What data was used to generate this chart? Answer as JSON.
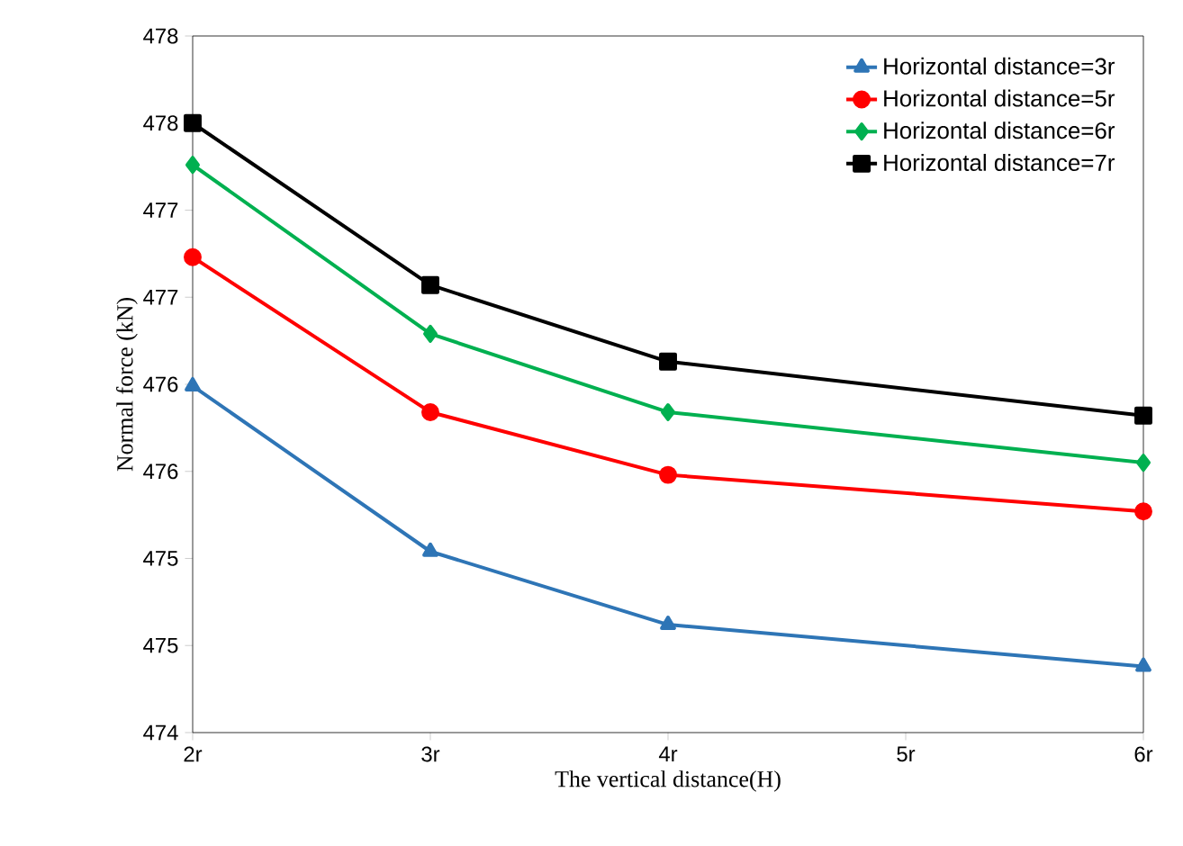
{
  "chart_data": {
    "type": "line",
    "xlabel": "The vertical distance(H)",
    "ylabel": "Normal force (kN)",
    "x": [
      2,
      3,
      4,
      6
    ],
    "xlim": [
      2,
      6
    ],
    "xticks": [
      {
        "value": 2,
        "label": "2r"
      },
      {
        "value": 3,
        "label": "3r"
      },
      {
        "value": 4,
        "label": "4r"
      },
      {
        "value": 5,
        "label": "5r"
      },
      {
        "value": 6,
        "label": "6r"
      }
    ],
    "ylim": [
      474,
      478
    ],
    "yticks": [
      474,
      {
        "value": 474.5,
        "label": "475"
      },
      475,
      {
        "value": 475.5,
        "label": "476"
      },
      476,
      {
        "value": 476.5,
        "label": "477"
      },
      477,
      {
        "value": 477.5,
        "label": "478"
      },
      478
    ],
    "series": [
      {
        "name": "Horizontal distance=3r",
        "color": "#2e75b6",
        "marker": "triangle",
        "values": [
          475.99,
          475.04,
          474.62,
          474.38
        ]
      },
      {
        "name": "Horizontal distance=5r",
        "color": "#ff0000",
        "marker": "circle",
        "values": [
          476.73,
          475.84,
          475.48,
          475.27
        ]
      },
      {
        "name": "Horizontal distance=6r",
        "color": "#00b050",
        "marker": "diamond",
        "values": [
          477.26,
          476.29,
          475.84,
          475.55
        ]
      },
      {
        "name": "Horizontal distance=7r",
        "color": "#000000",
        "marker": "square",
        "values": [
          477.5,
          476.57,
          476.13,
          475.82
        ]
      }
    ],
    "legend": "top right",
    "grid": false,
    "line_style": "solid"
  }
}
